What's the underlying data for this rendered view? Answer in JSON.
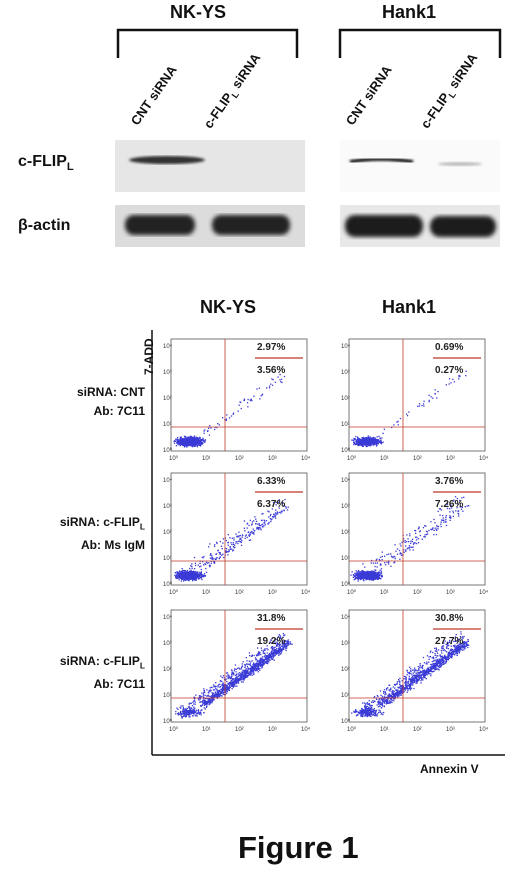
{
  "western_blot": {
    "groups": [
      {
        "name": "NK-YS",
        "lanes": [
          {
            "main": "CNT siRNA",
            "sub": ""
          },
          {
            "main": "c-FLIP",
            "sub": "L",
            "rest": " siRNA"
          }
        ]
      },
      {
        "name": "Hank1",
        "lanes": [
          {
            "main": "CNT siRNA",
            "sub": ""
          },
          {
            "main": "c-FLIP",
            "sub": "L",
            "rest": " siRNA"
          }
        ]
      }
    ],
    "rows": [
      {
        "label_main": "c-FLIP",
        "label_sub": "L"
      },
      {
        "label_main": "β-actin",
        "label_sub": ""
      }
    ]
  },
  "flow": {
    "columns": [
      "NK-YS",
      "Hank1"
    ],
    "y_axis_label": "7-ADD",
    "x_axis_label": "Annexin V",
    "tick_labels": [
      "10⁰",
      "10¹",
      "10²",
      "10³",
      "10⁴"
    ],
    "rows": [
      {
        "line1": "siRNA: CNT",
        "line2": "Ab: 7C11",
        "line1_sub": "",
        "line1_main": "siRNA: CNT"
      },
      {
        "line1_main": "siRNA: c-FLIP",
        "line1_sub": "L",
        "line2": "Ab: Ms IgM"
      },
      {
        "line1_main": "siRNA: c-FLIP",
        "line1_sub": "L",
        "line2": "Ab: 7C11"
      }
    ],
    "panels": [
      {
        "upper": "2.97%",
        "lower": "3.56%"
      },
      {
        "upper": "0.69%",
        "lower": "0.27%"
      },
      {
        "upper": "6.33%",
        "lower": "6.37%"
      },
      {
        "upper": "3.76%",
        "lower": "7.26%"
      },
      {
        "upper": "31.8%",
        "lower": "19.2%"
      },
      {
        "upper": "30.8%",
        "lower": "27.7%"
      }
    ],
    "colors": {
      "dots": "#3a3ad6",
      "gate": "#c0392b"
    }
  },
  "figure_caption": "Figure 1"
}
